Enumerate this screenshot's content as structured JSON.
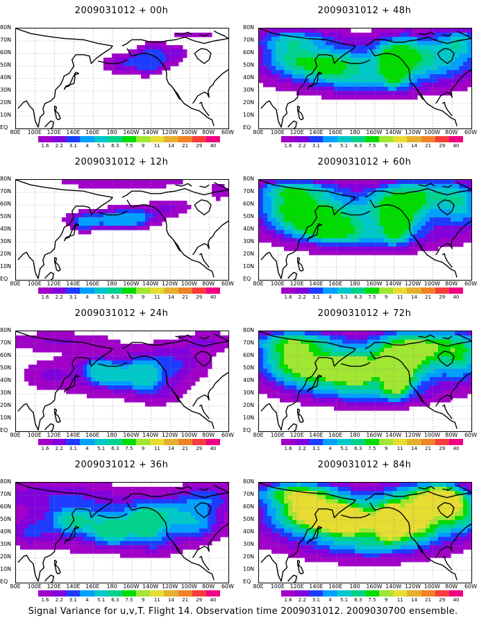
{
  "caption": "Signal Variance for u,v,T. Flight 14. Observation time 2009031012. 2009030700 ensemble.",
  "colorbar": {
    "labels": [
      "1.6",
      "2.2",
      "3.1",
      "4",
      "5.1",
      "6.3",
      "7.5",
      "9",
      "11",
      "14",
      "21",
      "29",
      "40"
    ],
    "colors": [
      "#a000c8",
      "#8200dc",
      "#1e3cff",
      "#00a0ff",
      "#00c8c8",
      "#00d28c",
      "#00dc00",
      "#a0e632",
      "#e6dc32",
      "#e6af2d",
      "#f08228",
      "#fa3c3c",
      "#f00082"
    ]
  },
  "axes": {
    "ylabels": [
      "80N",
      "70N",
      "60N",
      "50N",
      "40N",
      "30N",
      "20N",
      "10N",
      "EQ"
    ],
    "xlabels": [
      "80E",
      "100E",
      "120E",
      "140E",
      "160E",
      "180",
      "160W",
      "140W",
      "120W",
      "100W",
      "80W",
      "60W"
    ]
  },
  "chart_data": [
    {
      "type": "heatmap",
      "title": "2009031012 + 00h",
      "lon_range": [
        80,
        300
      ],
      "lat_range": [
        0,
        80
      ],
      "max_level": 3,
      "blobs": [
        [
          195,
          52,
          25,
          8,
          3.0
        ],
        [
          225,
          58,
          20,
          10,
          3.5
        ],
        [
          218,
          52,
          10,
          8,
          3.0
        ],
        [
          250,
          60,
          10,
          6,
          1.5
        ],
        [
          265,
          75,
          30,
          4,
          1.5
        ],
        [
          210,
          36,
          8,
          4,
          1.0
        ]
      ]
    },
    {
      "type": "heatmap",
      "title": "2009031012 + 12h",
      "lon_range": [
        80,
        300
      ],
      "lat_range": [
        0,
        80
      ],
      "max_level": 4,
      "blobs": [
        [
          170,
          48,
          35,
          7,
          4.0
        ],
        [
          200,
          50,
          25,
          8,
          4.2
        ],
        [
          150,
          45,
          10,
          6,
          3.0
        ],
        [
          240,
          58,
          25,
          8,
          2.0
        ],
        [
          190,
          77,
          90,
          3,
          2.0
        ],
        [
          290,
          70,
          10,
          6,
          2.0
        ],
        [
          205,
          20,
          6,
          4,
          1.0
        ]
      ]
    },
    {
      "type": "heatmap",
      "title": "2009031012 + 24h",
      "lon_range": [
        80,
        300
      ],
      "lat_range": [
        0,
        80
      ],
      "max_level": 5,
      "blobs": [
        [
          185,
          45,
          60,
          18,
          3.0
        ],
        [
          212,
          44,
          14,
          10,
          4.5
        ],
        [
          180,
          45,
          18,
          8,
          4.0
        ],
        [
          165,
          50,
          14,
          8,
          3.5
        ],
        [
          240,
          55,
          40,
          15,
          2.5
        ],
        [
          120,
          72,
          60,
          8,
          2.0
        ],
        [
          280,
          72,
          30,
          8,
          2.0
        ],
        [
          230,
          30,
          25,
          10,
          1.5
        ],
        [
          110,
          45,
          25,
          12,
          1.5
        ]
      ]
    },
    {
      "type": "heatmap",
      "title": "2009031012 + 36h",
      "lon_range": [
        80,
        300
      ],
      "lat_range": [
        0,
        80
      ],
      "max_level": 6,
      "blobs": [
        [
          180,
          45,
          100,
          20,
          3.2
        ],
        [
          215,
          47,
          14,
          10,
          5.5
        ],
        [
          180,
          40,
          20,
          10,
          4.0
        ],
        [
          140,
          50,
          25,
          10,
          4.0
        ],
        [
          235,
          55,
          45,
          15,
          3.5
        ],
        [
          120,
          70,
          70,
          12,
          2.5
        ],
        [
          280,
          68,
          30,
          12,
          3.0
        ],
        [
          270,
          45,
          20,
          10,
          2.0
        ],
        [
          225,
          30,
          25,
          8,
          1.5
        ],
        [
          95,
          40,
          15,
          10,
          2.0
        ]
      ]
    },
    {
      "type": "heatmap",
      "title": "2009031012 + 48h",
      "lon_range": [
        80,
        300
      ],
      "lat_range": [
        0,
        80
      ],
      "max_level": 7,
      "blobs": [
        [
          190,
          50,
          110,
          20,
          3.8
        ],
        [
          220,
          48,
          12,
          12,
          6.5
        ],
        [
          225,
          60,
          25,
          15,
          4.5
        ],
        [
          150,
          50,
          35,
          12,
          4.5
        ],
        [
          110,
          60,
          30,
          15,
          3.5
        ],
        [
          270,
          60,
          40,
          20,
          3.5
        ],
        [
          290,
          70,
          20,
          10,
          3.0
        ],
        [
          120,
          72,
          50,
          8,
          3.0
        ],
        [
          195,
          35,
          50,
          10,
          2.0
        ]
      ]
    },
    {
      "type": "heatmap",
      "title": "2009031012 + 60h",
      "lon_range": [
        80,
        300
      ],
      "lat_range": [
        0,
        80
      ],
      "max_level": 7,
      "blobs": [
        [
          190,
          50,
          110,
          22,
          4.0
        ],
        [
          222,
          45,
          12,
          12,
          7.0
        ],
        [
          225,
          60,
          30,
          15,
          5.0
        ],
        [
          140,
          50,
          35,
          15,
          5.0
        ],
        [
          110,
          60,
          30,
          18,
          4.0
        ],
        [
          255,
          70,
          40,
          12,
          4.0
        ],
        [
          290,
          60,
          20,
          18,
          3.5
        ],
        [
          120,
          72,
          50,
          8,
          3.5
        ],
        [
          195,
          33,
          60,
          10,
          2.5
        ],
        [
          155,
          40,
          25,
          8,
          3.5
        ]
      ]
    },
    {
      "type": "heatmap",
      "title": "2009031012 + 72h",
      "lon_range": [
        80,
        300
      ],
      "lat_range": [
        0,
        80
      ],
      "max_level": 8,
      "blobs": [
        [
          190,
          50,
          110,
          22,
          4.3
        ],
        [
          222,
          43,
          14,
          14,
          7.5
        ],
        [
          230,
          60,
          35,
          18,
          5.5
        ],
        [
          150,
          50,
          40,
          15,
          5.5
        ],
        [
          180,
          48,
          15,
          10,
          6.0
        ],
        [
          110,
          60,
          30,
          18,
          4.5
        ],
        [
          260,
          70,
          45,
          12,
          4.5
        ],
        [
          290,
          60,
          20,
          18,
          4.0
        ],
        [
          120,
          72,
          50,
          8,
          4.0
        ],
        [
          195,
          30,
          60,
          10,
          2.5
        ]
      ]
    },
    {
      "type": "heatmap",
      "title": "2009031012 + 84h",
      "lon_range": [
        80,
        300
      ],
      "lat_range": [
        0,
        80
      ],
      "max_level": 9,
      "blobs": [
        [
          190,
          50,
          120,
          24,
          4.6
        ],
        [
          215,
          48,
          12,
          12,
          8.0
        ],
        [
          170,
          50,
          30,
          12,
          7.0
        ],
        [
          150,
          55,
          25,
          10,
          6.0
        ],
        [
          250,
          65,
          40,
          15,
          6.0
        ],
        [
          270,
          68,
          20,
          10,
          7.0
        ],
        [
          120,
          60,
          30,
          18,
          5.0
        ],
        [
          240,
          45,
          30,
          12,
          5.0
        ],
        [
          120,
          72,
          50,
          8,
          4.5
        ],
        [
          195,
          30,
          60,
          12,
          3.0
        ],
        [
          290,
          55,
          20,
          15,
          4.0
        ]
      ]
    }
  ]
}
